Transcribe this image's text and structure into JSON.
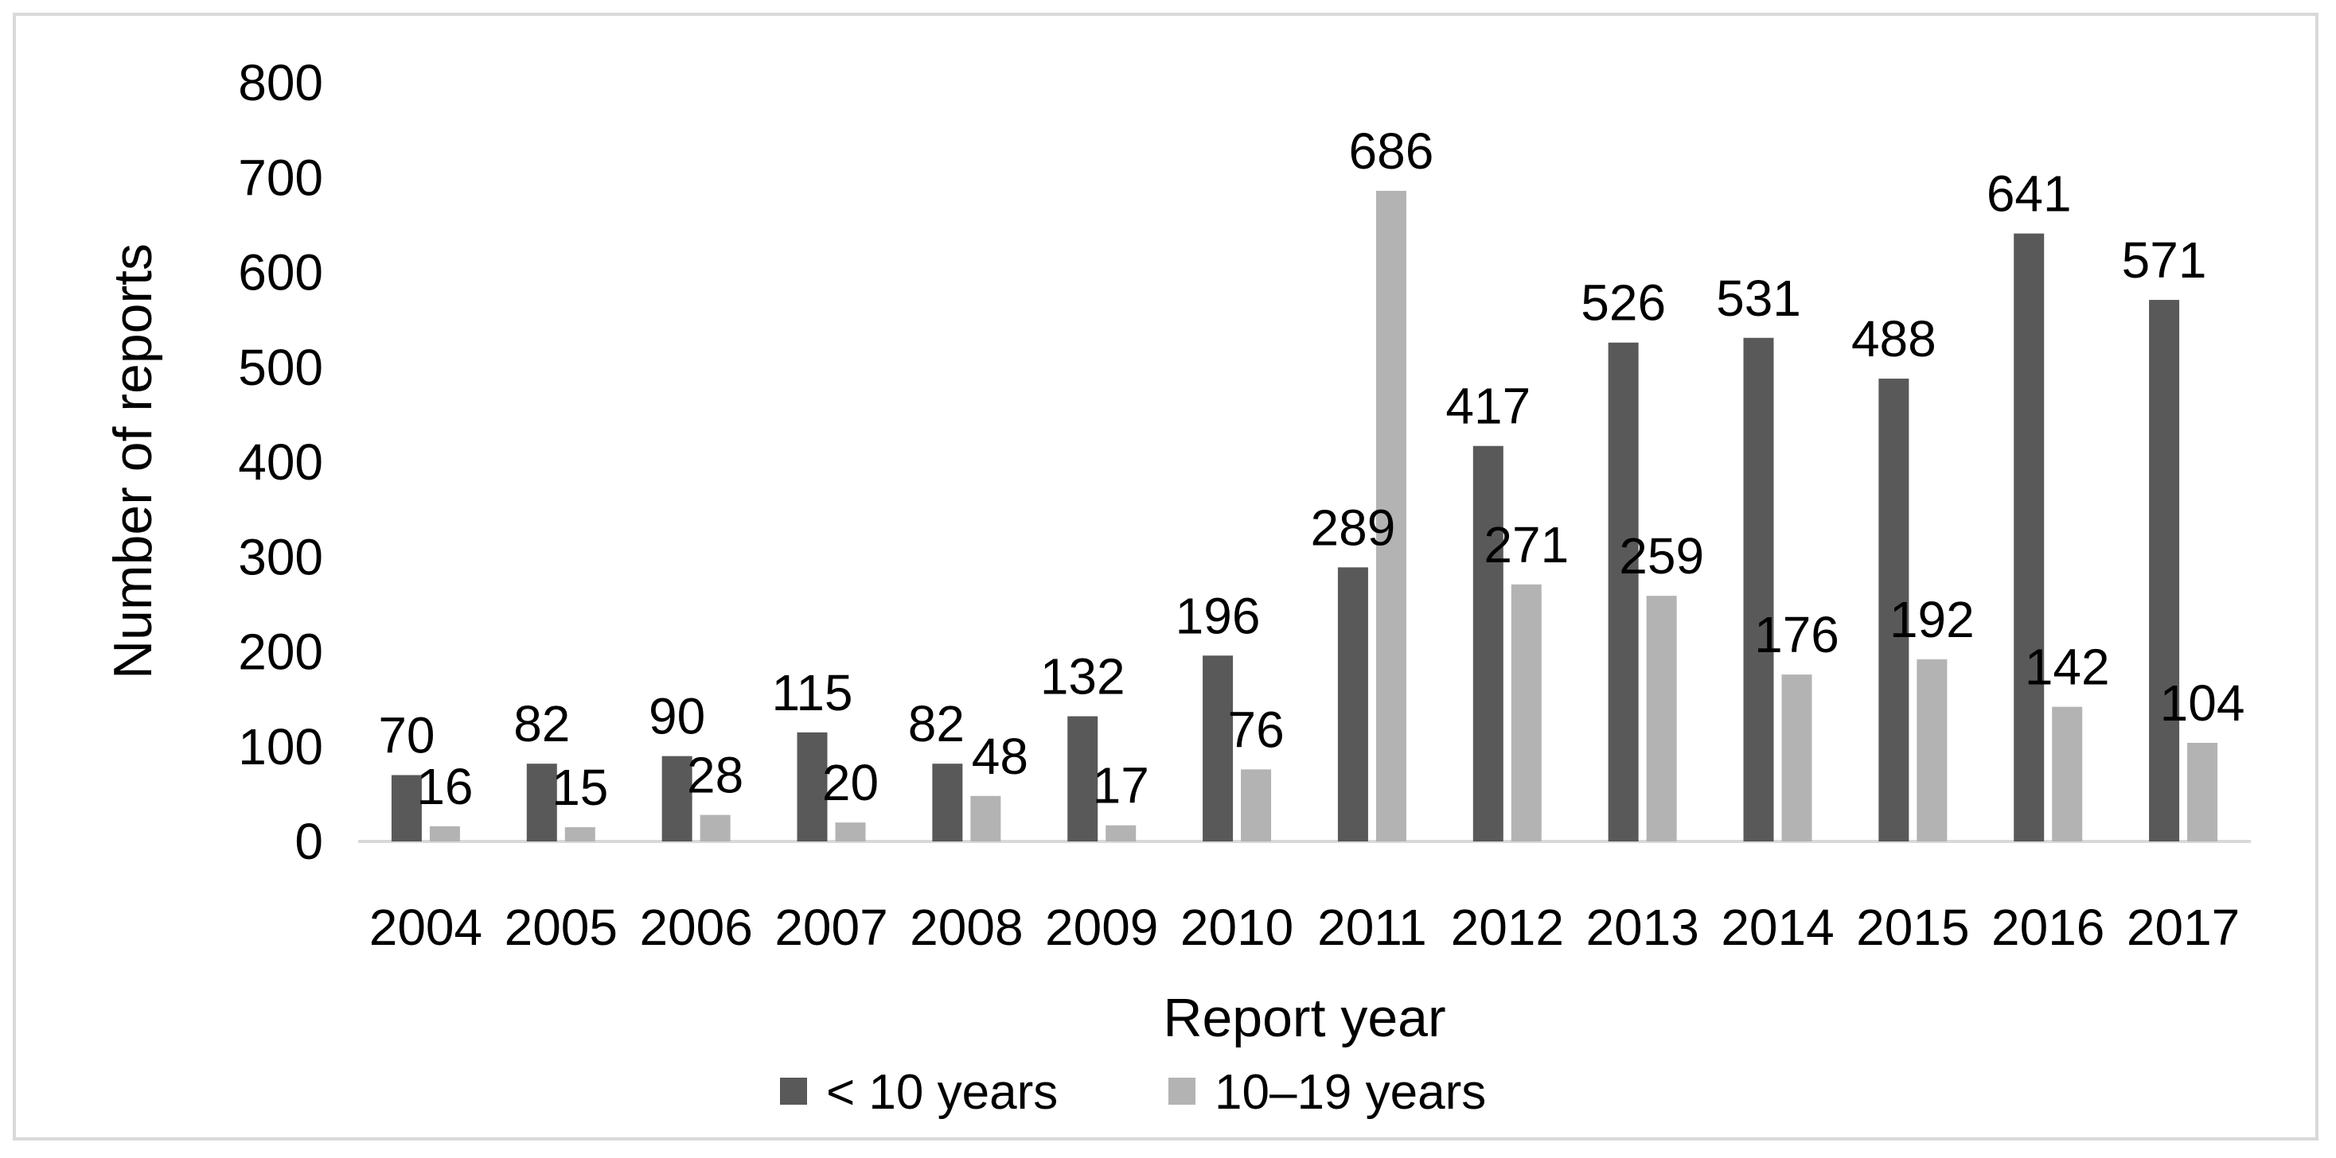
{
  "chart_data": {
    "type": "bar",
    "title": "",
    "xlabel": "Report year",
    "ylabel": "Number of reports",
    "ylim": [
      0,
      800
    ],
    "yticks": [
      0,
      100,
      200,
      300,
      400,
      500,
      600,
      700,
      800
    ],
    "grid": false,
    "legend_position": "bottom",
    "categories": [
      "2004",
      "2005",
      "2006",
      "2007",
      "2008",
      "2009",
      "2010",
      "2011",
      "2012",
      "2013",
      "2014",
      "2015",
      "2016",
      "2017"
    ],
    "series": [
      {
        "name": "< 10 years",
        "color": "#595959",
        "values": [
          70,
          82,
          90,
          115,
          82,
          132,
          196,
          289,
          417,
          526,
          531,
          488,
          641,
          571
        ]
      },
      {
        "name": "10–19 years",
        "color": "#b3b3b3",
        "values": [
          16,
          15,
          28,
          20,
          48,
          17,
          76,
          686,
          271,
          259,
          176,
          192,
          142,
          104
        ]
      }
    ]
  }
}
